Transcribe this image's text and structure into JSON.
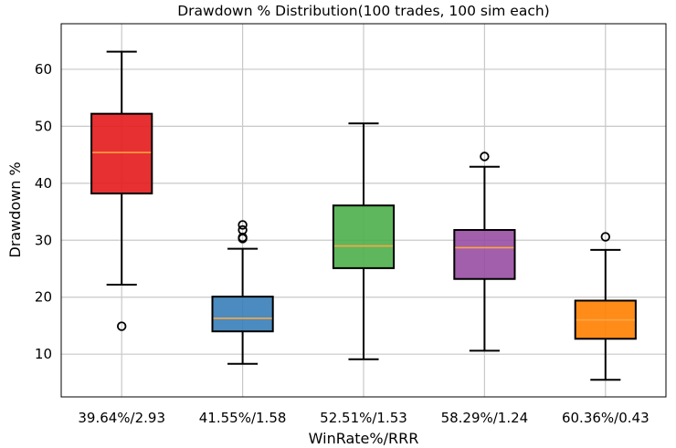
{
  "chart_data": {
    "type": "box",
    "title": "Drawdown % Distribution(100 trades, 100 sim each)",
    "xlabel": "WinRate%/RRR",
    "ylabel": "Drawdown %",
    "ylim": [
      2.5,
      68
    ],
    "yticks": [
      10,
      20,
      30,
      40,
      50,
      60
    ],
    "grid": true,
    "categories": [
      "39.64%/2.93",
      "41.55%/1.58",
      "52.51%/1.53",
      "58.29%/1.24",
      "60.36%/0.43"
    ],
    "boxes": [
      {
        "label": "39.64%/2.93",
        "whisker_low": 22.2,
        "q1": 38.2,
        "median": 45.4,
        "q3": 52.2,
        "whisker_high": 63.1,
        "outliers": [
          14.9
        ],
        "color": "#e41a1c"
      },
      {
        "label": "41.55%/1.58",
        "whisker_low": 8.3,
        "q1": 14.0,
        "median": 16.3,
        "q3": 20.1,
        "whisker_high": 28.5,
        "outliers": [
          30.3,
          30.5,
          31.8,
          32.7
        ],
        "color": "#377eb8"
      },
      {
        "label": "52.51%/1.53",
        "whisker_low": 9.1,
        "q1": 25.1,
        "median": 29.0,
        "q3": 36.1,
        "whisker_high": 50.5,
        "outliers": [],
        "color": "#4daf4a"
      },
      {
        "label": "58.29%/1.24",
        "whisker_low": 10.6,
        "q1": 23.2,
        "median": 28.7,
        "q3": 31.8,
        "whisker_high": 42.9,
        "outliers": [
          44.7
        ],
        "color": "#984ea3"
      },
      {
        "label": "60.36%/0.43",
        "whisker_low": 5.5,
        "q1": 12.7,
        "median": 16.0,
        "q3": 19.4,
        "whisker_high": 28.3,
        "outliers": [
          30.6
        ],
        "color": "#ff7f00"
      }
    ],
    "median_color": "#ffa640",
    "grid_color": "#c8c8c8"
  }
}
